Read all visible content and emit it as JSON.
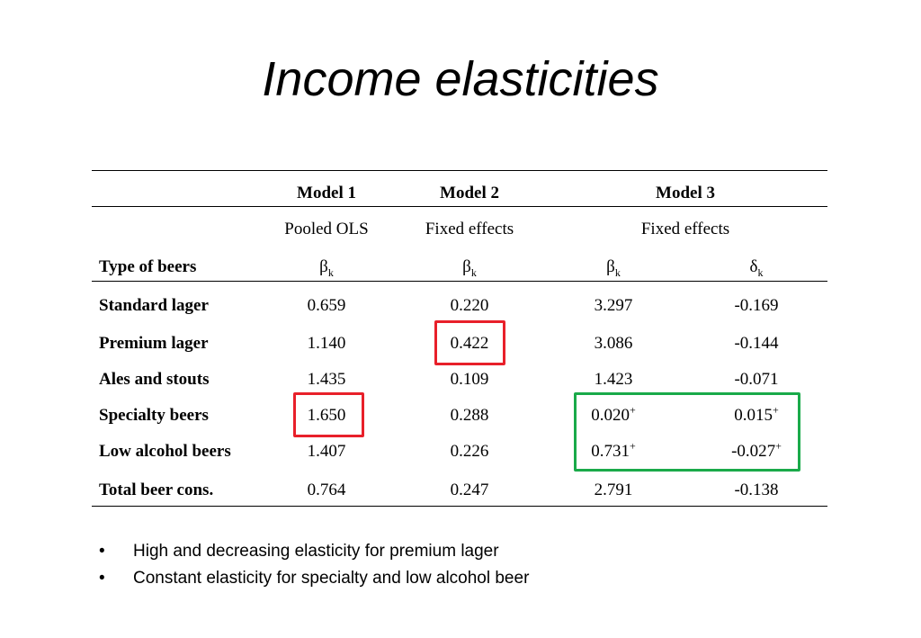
{
  "title": "Income elasticities",
  "table": {
    "row_header_label": "Type of beers",
    "models": [
      {
        "name": "Model 1",
        "method": "Pooled OLS"
      },
      {
        "name": "Model 2",
        "method": "Fixed effects"
      },
      {
        "name": "Model 3",
        "method": "Fixed effects"
      }
    ],
    "coef_beta": "β",
    "coef_delta": "δ",
    "coef_subscript": "k",
    "rows": [
      {
        "label": "Standard lager",
        "m1": "0.659",
        "m2": "0.220",
        "m3b": "3.297",
        "m3b_sup": "",
        "m3d": "-0.169",
        "m3d_sup": ""
      },
      {
        "label": "Premium lager",
        "m1": "1.140",
        "m2": "0.422",
        "m3b": "3.086",
        "m3b_sup": "",
        "m3d": "-0.144",
        "m3d_sup": ""
      },
      {
        "label": "Ales and stouts",
        "m1": "1.435",
        "m2": "0.109",
        "m3b": "1.423",
        "m3b_sup": "",
        "m3d": "-0.071",
        "m3d_sup": ""
      },
      {
        "label": "Specialty beers",
        "m1": "1.650",
        "m2": "0.288",
        "m3b": "0.020",
        "m3b_sup": "+",
        "m3d": "0.015",
        "m3d_sup": "+"
      },
      {
        "label": "Low alcohol beers",
        "m1": "1.407",
        "m2": "0.226",
        "m3b": "0.731",
        "m3b_sup": "+",
        "m3d": "-0.027",
        "m3d_sup": "+"
      },
      {
        "label": "Total beer cons.",
        "m1": "0.764",
        "m2": "0.247",
        "m3b": "2.791",
        "m3b_sup": "",
        "m3d": "-0.138",
        "m3d_sup": ""
      }
    ]
  },
  "highlights": {
    "red": "#e8202a",
    "green": "#1aaa4a"
  },
  "bullets": [
    "High and decreasing elasticity for premium lager",
    "Constant elasticity for specialty and low alcohol beer"
  ]
}
